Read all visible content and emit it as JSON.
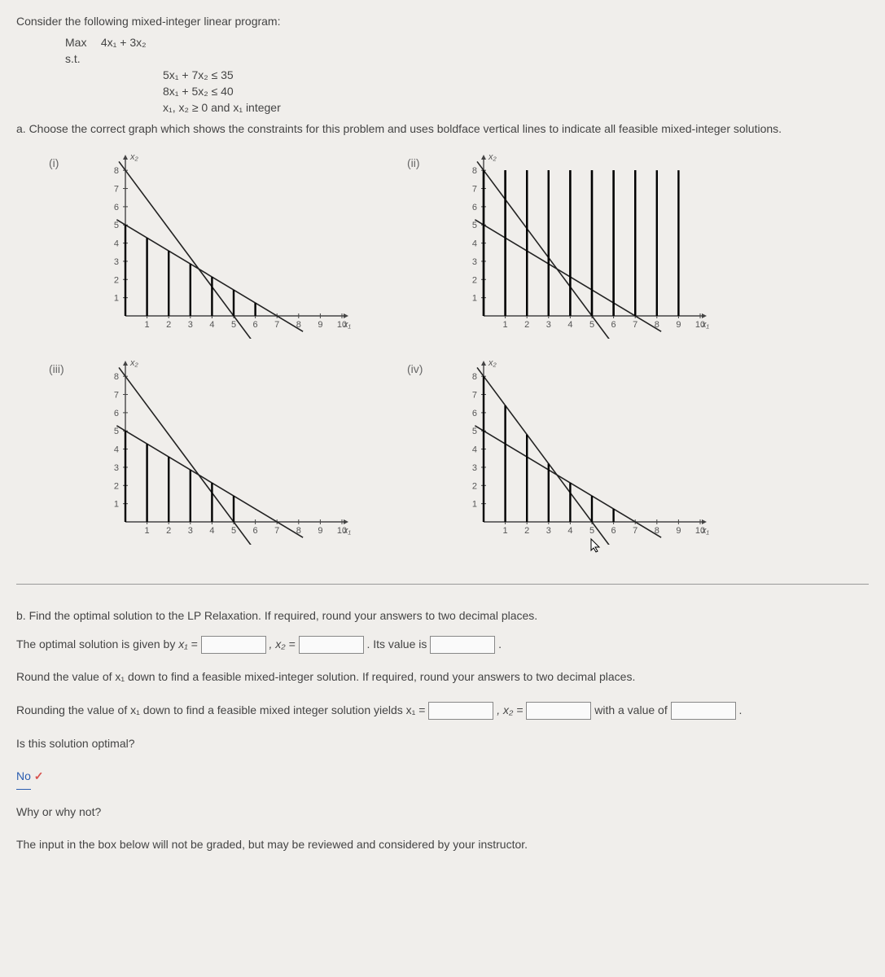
{
  "header": "Consider the following mixed-integer linear program:",
  "objective": {
    "lhs": "Max",
    "rhs": "4x₁ + 3x₂"
  },
  "subject_to": "s.t.",
  "constraints": [
    "5x₁ + 7x₂ ≤ 35",
    "8x₁ + 5x₂ ≤ 40",
    "x₁, x₂ ≥ 0 and x₁ integer"
  ],
  "part_a": "a. Choose the correct graph which shows the constraints for this problem and uses boldface vertical lines to indicate all feasible mixed-integer solutions.",
  "graphs": {
    "axis": {
      "x_ticks": [
        1,
        2,
        3,
        4,
        5,
        6,
        7,
        8,
        9,
        10
      ],
      "y_ticks": [
        1,
        2,
        3,
        4,
        5,
        6,
        7,
        8
      ],
      "x_label": "x₁",
      "y_label": "x₂",
      "xmax": 10,
      "ymax": 8.5
    },
    "constraint_lines": {
      "c1": {
        "x_at_y0": 7,
        "y_at_x0": 5
      },
      "c2": {
        "x_at_y0": 5,
        "y_at_x0": 8
      }
    },
    "panels": [
      {
        "label": "(i)",
        "bold_segments_c1": true,
        "full_height_bold": false,
        "use_max": false
      },
      {
        "label": "(ii)",
        "bold_segments_c1": false,
        "full_height_bold": true,
        "use_max": false
      },
      {
        "label": "(iii)",
        "bold_segments_c1": true,
        "full_height_bold": false,
        "use_max": false,
        "short": true
      },
      {
        "label": "(iv)",
        "bold_segments_c1": false,
        "full_height_bold": false,
        "use_max": true
      }
    ]
  },
  "part_b": {
    "intro": "b. Find the optimal solution to the LP Relaxation. If required, round your answers to two decimal places.",
    "line1_pre": "The optimal solution is given by ",
    "x1_lbl": "x₁ =",
    "x2_lbl": ", x₂ =",
    "value_lbl": ". Its value is",
    "period": ".",
    "line2": "Round the value of x₁ down to find a feasible mixed-integer solution. If required, round your answers to two decimal places.",
    "line3_pre": "Rounding the value of x₁ down to find a feasible mixed integer solution yields x₁ =",
    "with_value": "with a value of",
    "optimal_q": "Is this solution optimal?",
    "no_label": "No",
    "check": "✓",
    "why": "Why or why not?",
    "footer": "The input in the box below will not be graded, but may be reviewed and considered by your instructor."
  },
  "colors": {
    "text": "#444444",
    "axis": "#444444",
    "line": "#222222",
    "bold": "#000000",
    "link": "#2a5db0",
    "check": "#d9534f"
  }
}
